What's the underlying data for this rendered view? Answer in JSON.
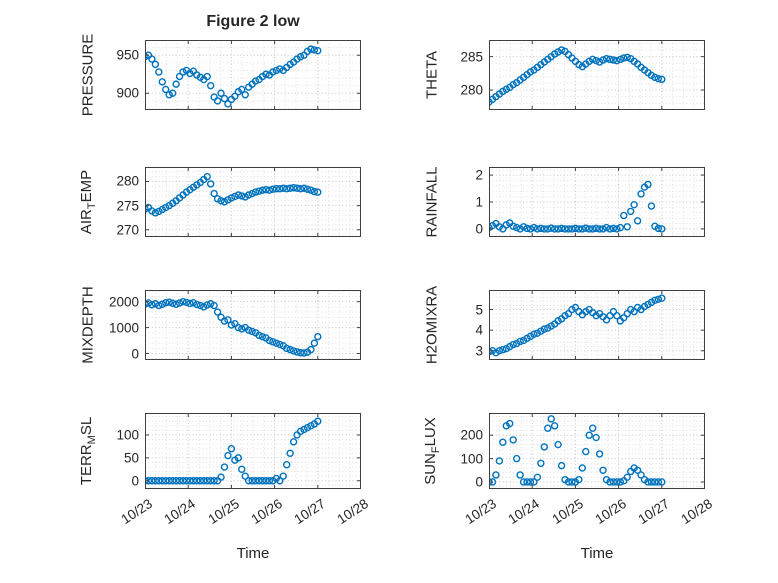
{
  "chart_data": {
    "type": "scatter",
    "title": "Figure 2 low",
    "xlabel": "Time",
    "marker": "open-circle",
    "style": {
      "marker_color": "#0072BD",
      "grid_major_color": "#c4c4c4",
      "grid_minor_color": "#dedede",
      "axis_color": "#3f3f3f",
      "text_color": "#262626"
    },
    "layout_hints": {
      "grid": "on",
      "minor_grid": "on",
      "rows": 4,
      "cols": 2,
      "x_tick_rotation": -33
    },
    "x_range": [
      23,
      28
    ],
    "x_ticks": [
      23,
      24,
      25,
      26,
      27,
      28
    ],
    "x_tick_labels": [
      "10/23",
      "10/24",
      "10/25",
      "10/26",
      "10/27",
      "10/28"
    ],
    "x": [
      23,
      23.08,
      23.16,
      23.24,
      23.32,
      23.4,
      23.48,
      23.56,
      23.64,
      23.72,
      23.8,
      23.88,
      23.96,
      24.04,
      24.12,
      24.2,
      24.28,
      24.36,
      24.44,
      24.52,
      24.6,
      24.68,
      24.76,
      24.84,
      24.92,
      25,
      25.08,
      25.16,
      25.24,
      25.32,
      25.4,
      25.48,
      25.56,
      25.64,
      25.72,
      25.8,
      25.88,
      25.96,
      26.04,
      26.12,
      26.2,
      26.28,
      26.36,
      26.44,
      26.52,
      26.6,
      26.68,
      26.76,
      26.84,
      26.92,
      27
    ],
    "subplots": [
      {
        "name": "pressure",
        "ylabel": "PRESSURE",
        "yticks": [
          900,
          950
        ],
        "ylim": [
          878,
          970
        ],
        "values": [
          948,
          950,
          945,
          938,
          928,
          915,
          905,
          898,
          900,
          912,
          922,
          928,
          930,
          926,
          929,
          924,
          921,
          918,
          922,
          910,
          895,
          890,
          900,
          893,
          886,
          892,
          896,
          902,
          905,
          898,
          908,
          912,
          916,
          918,
          922,
          925,
          924,
          928,
          930,
          932,
          930,
          934,
          938,
          941,
          945,
          948,
          950,
          955,
          958,
          957,
          956
        ]
      },
      {
        "name": "theta",
        "ylabel": "THETA",
        "yticks": [
          280,
          285
        ],
        "ylim": [
          277,
          287.5
        ],
        "values": [
          278.2,
          278.6,
          279,
          279.4,
          279.8,
          280.1,
          280.4,
          280.8,
          281.1,
          281.5,
          281.9,
          282.3,
          282.7,
          283,
          283.4,
          283.8,
          284.2,
          284.6,
          285,
          285.4,
          285.7,
          286,
          285.8,
          285.3,
          284.8,
          284.3,
          283.8,
          283.5,
          283.9,
          284.3,
          284.6,
          284.4,
          284.2,
          284.5,
          284.7,
          284.6,
          284.5,
          284.4,
          284.6,
          284.8,
          284.9,
          284.7,
          284.3,
          283.9,
          283.4,
          283,
          282.6,
          282.2,
          281.9,
          281.7,
          281.6
        ]
      },
      {
        "name": "air-temp",
        "ylabel": "AIR_TEMP",
        "yticks": [
          270,
          275,
          280
        ],
        "ylim": [
          268.5,
          283
        ],
        "values": [
          274.3,
          274.6,
          273.9,
          273.5,
          273.8,
          274.2,
          274.6,
          275,
          275.5,
          276,
          276.6,
          277.2,
          277.8,
          278.3,
          278.8,
          279.3,
          279.8,
          280.4,
          281,
          279.5,
          277.5,
          276.4,
          276,
          275.8,
          276.2,
          276.6,
          276.9,
          277.2,
          277,
          276.8,
          277.2,
          277.5,
          277.8,
          278,
          278.2,
          278.3,
          278.2,
          278.4,
          278.5,
          278.5,
          278.6,
          278.5,
          278.6,
          278.7,
          278.6,
          278.5,
          278.6,
          278.4,
          278.2,
          277.9,
          277.8
        ]
      },
      {
        "name": "rainfall",
        "ylabel": "RAINFALL",
        "yticks": [
          0,
          1,
          2
        ],
        "ylim": [
          -0.3,
          2.3
        ],
        "values": [
          0.05,
          0.12,
          0.2,
          0.08,
          0,
          0.15,
          0.22,
          0.1,
          0.05,
          0,
          0.08,
          0.02,
          0,
          0.05,
          0,
          0.02,
          0,
          0,
          0.03,
          0,
          0,
          0.02,
          0,
          0,
          0,
          0.02,
          0,
          0,
          0.03,
          0,
          0,
          0.02,
          0,
          0,
          0.05,
          0,
          0.02,
          0,
          0.05,
          0.5,
          0.08,
          0.65,
          0.9,
          0.3,
          1.3,
          1.55,
          1.65,
          0.85,
          0.1,
          0.02,
          0
        ]
      },
      {
        "name": "mixdepth",
        "ylabel": "MIXDEPTH",
        "yticks": [
          0,
          1000,
          2000
        ],
        "ylim": [
          -250,
          2450
        ],
        "values": [
          1900,
          1950,
          1880,
          1920,
          1850,
          1900,
          1960,
          1980,
          1940,
          1900,
          1950,
          2000,
          1970,
          1930,
          1960,
          1890,
          1850,
          1800,
          1870,
          1920,
          1850,
          1600,
          1400,
          1250,
          1300,
          1100,
          1150,
          1000,
          950,
          1000,
          900,
          850,
          800,
          700,
          650,
          600,
          500,
          450,
          400,
          350,
          300,
          200,
          150,
          100,
          60,
          30,
          20,
          50,
          150,
          400,
          650
        ]
      },
      {
        "name": "h2omixra",
        "ylabel": "H2OMIXRA",
        "yticks": [
          3,
          4,
          5
        ],
        "ylim": [
          2.55,
          5.95
        ],
        "values": [
          2.95,
          3,
          2.9,
          3,
          3.05,
          3.1,
          3.2,
          3.3,
          3.35,
          3.45,
          3.5,
          3.6,
          3.7,
          3.8,
          3.85,
          3.95,
          4.05,
          4.1,
          4.2,
          4.3,
          4.45,
          4.55,
          4.7,
          4.8,
          5,
          5.1,
          4.9,
          4.75,
          4.9,
          5,
          4.85,
          4.7,
          4.8,
          4.65,
          4.5,
          4.7,
          4.9,
          4.7,
          4.45,
          4.6,
          4.8,
          5,
          4.9,
          5.1,
          5,
          5.15,
          5.25,
          5.35,
          5.45,
          5.5,
          5.55
        ]
      },
      {
        "name": "terr-msl",
        "ylabel": "TERR_MSL",
        "yticks": [
          0,
          50,
          100
        ],
        "ylim": [
          -18,
          148
        ],
        "values": [
          0,
          0,
          0,
          0,
          0,
          0,
          0,
          0,
          0,
          0,
          0,
          0,
          0,
          0,
          0,
          0,
          0,
          0,
          0,
          0,
          0,
          0,
          8,
          30,
          55,
          70,
          45,
          50,
          25,
          10,
          0,
          0,
          0,
          0,
          0,
          0,
          0,
          0,
          5,
          0,
          10,
          35,
          60,
          85,
          100,
          108,
          112,
          116,
          120,
          124,
          130
        ]
      },
      {
        "name": "sun-flux",
        "ylabel": "SUN_FLUX",
        "yticks": [
          0,
          100,
          200
        ],
        "ylim": [
          -30,
          295
        ],
        "values": [
          0,
          0,
          30,
          90,
          170,
          240,
          250,
          180,
          100,
          30,
          0,
          0,
          0,
          0,
          20,
          80,
          150,
          230,
          270,
          240,
          160,
          70,
          10,
          0,
          0,
          0,
          10,
          60,
          130,
          200,
          230,
          190,
          120,
          50,
          10,
          0,
          0,
          0,
          0,
          5,
          20,
          45,
          60,
          50,
          30,
          10,
          0,
          0,
          0,
          0,
          0
        ]
      }
    ]
  }
}
